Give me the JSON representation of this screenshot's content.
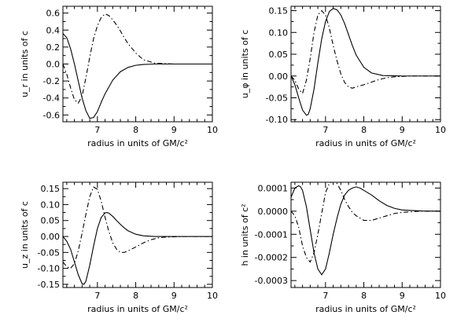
{
  "chart_data": [
    {
      "type": "line",
      "xlabel": "radius in units of GM/c²",
      "ylabel": "u_r in units of c",
      "xlim": [
        6.1,
        10
      ],
      "ylim": [
        -0.68,
        0.68
      ],
      "xticks": [
        7,
        8,
        9,
        10
      ],
      "xtick_labels": [
        "7",
        "8",
        "9",
        "10"
      ],
      "yticks": [
        -0.6,
        -0.4,
        -0.2,
        0.0,
        0.2,
        0.4,
        0.6
      ],
      "ytick_labels": [
        "-0.6",
        "-0.4",
        "-0.2",
        "0.0",
        "0.2",
        "0.4",
        "0.6"
      ],
      "series": [
        {
          "style": "solid",
          "x": [
            6.1,
            6.2,
            6.3,
            6.4,
            6.5,
            6.6,
            6.7,
            6.8,
            6.9,
            7.0,
            7.1,
            7.2,
            7.4,
            7.6,
            7.8,
            8.0,
            8.2,
            8.5,
            9.0,
            10.0
          ],
          "y": [
            0.36,
            0.31,
            0.18,
            0.0,
            -0.2,
            -0.4,
            -0.55,
            -0.64,
            -0.63,
            -0.56,
            -0.45,
            -0.35,
            -0.19,
            -0.09,
            -0.04,
            -0.015,
            -0.005,
            0.0,
            0.0,
            0.0
          ]
        },
        {
          "style": "dash-dot",
          "x": [
            6.1,
            6.2,
            6.3,
            6.4,
            6.5,
            6.6,
            6.7,
            6.8,
            6.9,
            7.0,
            7.1,
            7.2,
            7.3,
            7.4,
            7.5,
            7.6,
            7.7,
            7.8,
            8.0,
            8.2,
            8.5,
            9.0,
            10.0
          ],
          "y": [
            0.0,
            -0.12,
            -0.28,
            -0.42,
            -0.46,
            -0.38,
            -0.16,
            0.08,
            0.3,
            0.45,
            0.55,
            0.59,
            0.57,
            0.52,
            0.46,
            0.39,
            0.31,
            0.24,
            0.13,
            0.05,
            0.01,
            0.0,
            0.0
          ]
        }
      ]
    },
    {
      "type": "line",
      "xlabel": "radius in units of GM/c²",
      "ylabel": "u_φ in units of c",
      "xlim": [
        6.1,
        10
      ],
      "ylim": [
        -0.105,
        0.16
      ],
      "xticks": [
        7,
        8,
        9,
        10
      ],
      "xtick_labels": [
        "7",
        "8",
        "9",
        "10"
      ],
      "yticks": [
        -0.1,
        -0.05,
        0.0,
        0.05,
        0.1,
        0.15
      ],
      "ytick_labels": [
        "-0.10",
        "-0.05",
        "0.00",
        "0.05",
        "0.10",
        "0.15"
      ],
      "series": [
        {
          "style": "solid",
          "x": [
            6.1,
            6.2,
            6.3,
            6.4,
            6.5,
            6.55,
            6.6,
            6.7,
            6.8,
            6.9,
            7.0,
            7.1,
            7.2,
            7.3,
            7.4,
            7.5,
            7.6,
            7.7,
            7.8,
            8.0,
            8.2,
            8.5,
            9.0,
            10.0
          ],
          "y": [
            0.0,
            -0.02,
            -0.05,
            -0.078,
            -0.09,
            -0.088,
            -0.075,
            -0.03,
            0.03,
            0.085,
            0.125,
            0.148,
            0.155,
            0.152,
            0.14,
            0.12,
            0.095,
            0.07,
            0.048,
            0.02,
            0.007,
            0.001,
            0.0,
            0.0
          ]
        },
        {
          "style": "dash-dot",
          "x": [
            6.1,
            6.2,
            6.3,
            6.4,
            6.5,
            6.6,
            6.7,
            6.8,
            6.9,
            7.0,
            7.1,
            7.2,
            7.3,
            7.4,
            7.5,
            7.6,
            7.7,
            7.8,
            8.0,
            8.2,
            8.4,
            8.6,
            8.8,
            9.0,
            9.2,
            10.0
          ],
          "y": [
            0.0,
            -0.01,
            -0.03,
            -0.04,
            -0.01,
            0.04,
            0.1,
            0.14,
            0.15,
            0.14,
            0.11,
            0.07,
            0.035,
            0.005,
            -0.015,
            -0.025,
            -0.028,
            -0.025,
            -0.02,
            -0.014,
            -0.008,
            -0.004,
            -0.002,
            -0.001,
            0.0,
            0.0
          ]
        }
      ]
    },
    {
      "type": "line",
      "xlabel": "radius in units of GM/c²",
      "ylabel": "u_z in units of c",
      "xlim": [
        6.1,
        10
      ],
      "ylim": [
        -0.16,
        0.17
      ],
      "xticks": [
        7,
        8,
        9,
        10
      ],
      "xtick_labels": [
        "7",
        "8",
        "9",
        "10"
      ],
      "yticks": [
        -0.15,
        -0.1,
        -0.05,
        0.0,
        0.05,
        0.1,
        0.15
      ],
      "ytick_labels": [
        "-0.15",
        "-0.10",
        "-0.05",
        "0.00",
        "0.05",
        "0.10",
        "0.15"
      ],
      "series": [
        {
          "style": "solid",
          "x": [
            6.1,
            6.2,
            6.3,
            6.4,
            6.5,
            6.6,
            6.65,
            6.7,
            6.8,
            6.9,
            7.0,
            7.1,
            7.2,
            7.25,
            7.3,
            7.4,
            7.5,
            7.6,
            7.7,
            7.8,
            8.0,
            8.2,
            8.5,
            9.0,
            10.0
          ],
          "y": [
            0.0,
            -0.015,
            -0.04,
            -0.08,
            -0.12,
            -0.148,
            -0.15,
            -0.14,
            -0.09,
            -0.03,
            0.025,
            0.06,
            0.074,
            0.075,
            0.073,
            0.063,
            0.05,
            0.038,
            0.027,
            0.018,
            0.007,
            0.002,
            0.0,
            0.0,
            0.0
          ]
        },
        {
          "style": "dash-dot",
          "x": [
            6.1,
            6.2,
            6.3,
            6.4,
            6.5,
            6.6,
            6.7,
            6.8,
            6.9,
            7.0,
            7.1,
            7.2,
            7.3,
            7.4,
            7.5,
            7.6,
            7.7,
            7.8,
            8.0,
            8.2,
            8.4,
            8.6,
            8.8,
            9.0,
            9.2,
            10.0
          ],
          "y": [
            -0.08,
            -0.095,
            -0.1,
            -0.085,
            -0.045,
            0.01,
            0.07,
            0.125,
            0.155,
            0.148,
            0.11,
            0.06,
            0.015,
            -0.02,
            -0.04,
            -0.05,
            -0.05,
            -0.045,
            -0.033,
            -0.02,
            -0.01,
            -0.004,
            -0.002,
            -0.001,
            0.0,
            0.0
          ]
        }
      ]
    },
    {
      "type": "line",
      "xlabel": "radius in units of GM/c²",
      "ylabel": "h in units of c²",
      "xlim": [
        6.1,
        10
      ],
      "ylim": [
        -0.00033,
        0.000125
      ],
      "xticks": [
        7,
        8,
        9,
        10
      ],
      "xtick_labels": [
        "7",
        "8",
        "9",
        "10"
      ],
      "yticks": [
        -0.0003,
        -0.0002,
        -0.0001,
        0.0,
        0.0001
      ],
      "ytick_labels": [
        "-0.0003",
        "-0.0002",
        "-0.0001",
        "0.0000",
        "0.0001"
      ],
      "series": [
        {
          "style": "solid",
          "x": [
            6.1,
            6.2,
            6.3,
            6.35,
            6.4,
            6.5,
            6.6,
            6.7,
            6.8,
            6.9,
            7.0,
            7.1,
            7.2,
            7.3,
            7.4,
            7.5,
            7.6,
            7.7,
            7.8,
            7.9,
            8.0,
            8.2,
            8.4,
            8.6,
            8.8,
            9.0,
            9.5,
            10.0
          ],
          "y": [
            6e-05,
            0.0001,
            0.00011,
            0.000105,
            9e-05,
            2e-05,
            -8e-05,
            -0.00018,
            -0.00025,
            -0.000275,
            -0.00025,
            -0.00018,
            -0.0001,
            -3e-05,
            3e-05,
            7e-05,
            9e-05,
            0.0001,
            0.000105,
            0.0001,
            9e-05,
            7e-05,
            4.5e-05,
            2.5e-05,
            1.2e-05,
            5e-06,
            1e-06,
            0.0
          ]
        },
        {
          "style": "dash-dot",
          "x": [
            6.1,
            6.2,
            6.3,
            6.4,
            6.5,
            6.6,
            6.7,
            6.8,
            6.9,
            7.0,
            7.1,
            7.2,
            7.3,
            7.4,
            7.5,
            7.6,
            7.7,
            7.8,
            8.0,
            8.2,
            8.4,
            8.6,
            8.8,
            9.0,
            9.5,
            10.0
          ],
          "y": [
            0.0,
            -2e-05,
            -7e-05,
            -0.00015,
            -0.0002,
            -0.00022,
            -0.00018,
            -0.0001,
            -1e-05,
            8e-05,
            0.00012,
            0.00013,
            0.00012,
            9e-05,
            5e-05,
            2e-05,
            -5e-06,
            -2e-05,
            -4e-05,
            -4e-05,
            -3e-05,
            -2e-05,
            -1e-05,
            -5e-06,
            0.0,
            0.0
          ]
        }
      ]
    }
  ]
}
